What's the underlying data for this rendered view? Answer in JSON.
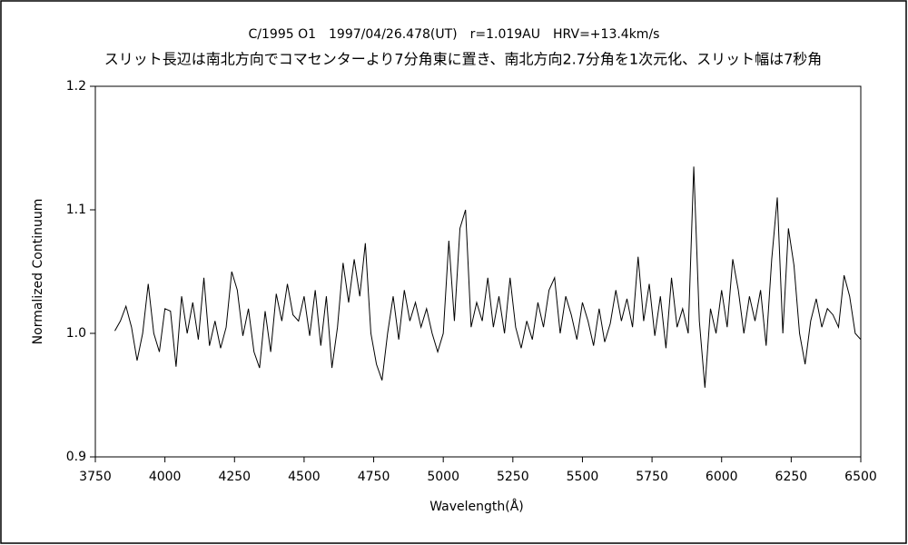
{
  "chart_data": {
    "type": "line",
    "title": "C/1995 O1　1997/04/26.478(UT)　r=1.019AU　HRV=+13.4km/s",
    "subtitle": "スリット長辺は南北方向でコマセンターより7分角東に置き、南北方向2.7分角を1次元化、スリット幅は7秒角",
    "x_label": "Wavelength(Å)",
    "y_label": "Normalized Continuum",
    "xlim": [
      3750,
      6500
    ],
    "xticks": [
      3750,
      4000,
      4250,
      4500,
      4750,
      5000,
      5250,
      5500,
      5750,
      6000,
      6250,
      6500
    ],
    "ylim": [
      0.9,
      1.2
    ],
    "yticks": [
      0.9,
      {
        "value": 1,
        "label": "1.0"
      },
      1.1,
      1.2
    ],
    "x": [
      3820,
      3840,
      3860,
      3880,
      3900,
      3920,
      3940,
      3960,
      3980,
      4000,
      4020,
      4040,
      4060,
      4080,
      4100,
      4120,
      4140,
      4160,
      4180,
      4200,
      4220,
      4240,
      4260,
      4280,
      4300,
      4320,
      4340,
      4360,
      4380,
      4400,
      4420,
      4440,
      4460,
      4480,
      4500,
      4520,
      4540,
      4560,
      4580,
      4600,
      4620,
      4640,
      4660,
      4680,
      4700,
      4720,
      4740,
      4760,
      4780,
      4800,
      4820,
      4840,
      4860,
      4880,
      4900,
      4920,
      4940,
      4960,
      4980,
      5000,
      5020,
      5040,
      5060,
      5080,
      5100,
      5120,
      5140,
      5160,
      5180,
      5200,
      5220,
      5240,
      5260,
      5280,
      5300,
      5320,
      5340,
      5360,
      5380,
      5400,
      5420,
      5440,
      5460,
      5480,
      5500,
      5520,
      5540,
      5560,
      5580,
      5600,
      5620,
      5640,
      5660,
      5680,
      5700,
      5720,
      5740,
      5760,
      5780,
      5800,
      5820,
      5840,
      5860,
      5880,
      5900,
      5920,
      5940,
      5960,
      5980,
      6000,
      6020,
      6040,
      6060,
      6080,
      6100,
      6120,
      6140,
      6160,
      6180,
      6200,
      6220,
      6240,
      6260,
      6280,
      6300,
      6320,
      6340,
      6360,
      6380,
      6400,
      6420,
      6440,
      6460,
      6480,
      6500
    ],
    "series": [
      {
        "color": "#000000",
        "values": [
          1.002,
          1.01,
          1.022,
          1.005,
          0.978,
          1.0,
          1.04,
          1.0,
          0.985,
          1.02,
          1.018,
          0.973,
          1.03,
          1.0,
          1.025,
          0.995,
          1.045,
          0.99,
          1.01,
          0.988,
          1.005,
          1.05,
          1.035,
          0.998,
          1.02,
          0.985,
          0.972,
          1.018,
          0.985,
          1.032,
          1.01,
          1.04,
          1.015,
          1.01,
          1.03,
          0.998,
          1.035,
          0.99,
          1.03,
          0.972,
          1.005,
          1.057,
          1.025,
          1.06,
          1.03,
          1.073,
          1.0,
          0.975,
          0.962,
          1.0,
          1.03,
          0.995,
          1.035,
          1.01,
          1.025,
          1.005,
          1.02,
          1.0,
          0.985,
          1.0,
          1.075,
          1.01,
          1.085,
          1.1,
          1.005,
          1.025,
          1.01,
          1.045,
          1.005,
          1.03,
          1.0,
          1.045,
          1.005,
          0.988,
          1.01,
          0.995,
          1.025,
          1.005,
          1.035,
          1.045,
          1.0,
          1.03,
          1.015,
          0.995,
          1.025,
          1.01,
          0.99,
          1.02,
          0.993,
          1.008,
          1.035,
          1.01,
          1.028,
          1.005,
          1.062,
          1.01,
          1.04,
          0.998,
          1.03,
          0.988,
          1.045,
          1.005,
          1.02,
          1.0,
          1.135,
          1.01,
          0.956,
          1.02,
          1.0,
          1.035,
          1.005,
          1.06,
          1.035,
          1.0,
          1.03,
          1.01,
          1.035,
          0.99,
          1.06,
          1.11,
          1.0,
          1.085,
          1.055,
          1.0,
          0.975,
          1.01,
          1.028,
          1.005,
          1.02,
          1.015,
          1.005,
          1.047,
          1.03,
          1.0,
          0.995
        ]
      }
    ]
  }
}
